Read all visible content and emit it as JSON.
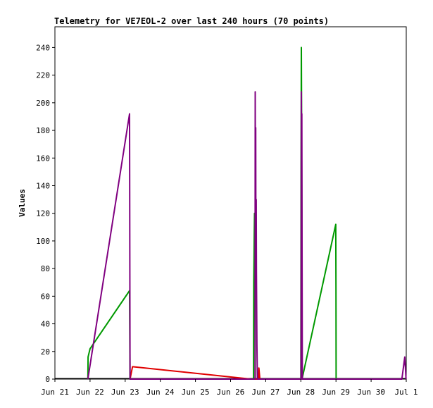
{
  "chart_data": {
    "type": "line",
    "title": "Telemetry for VE7EOL-2 over last 240 hours (70 points)",
    "xlabel": "",
    "ylabel": "Values",
    "x_range": [
      "2024-06-21T00:00",
      "2024-07-01T00:00"
    ],
    "ylim": [
      0,
      255
    ],
    "y_ticks": [
      0,
      20,
      40,
      60,
      80,
      100,
      120,
      140,
      160,
      180,
      200,
      220,
      240
    ],
    "x_ticks": [
      {
        "label": "Jun 21",
        "x": "2024-06-21T00:00"
      },
      {
        "label": "Jun 22",
        "x": "2024-06-22T00:00"
      },
      {
        "label": "Jun 23",
        "x": "2024-06-23T00:00"
      },
      {
        "label": "Jun 24",
        "x": "2024-06-24T00:00"
      },
      {
        "label": "Jun 25",
        "x": "2024-06-25T00:00"
      },
      {
        "label": "Jun 26",
        "x": "2024-06-26T00:00"
      },
      {
        "label": "Jun 27",
        "x": "2024-06-27T00:00"
      },
      {
        "label": "Jun 28",
        "x": "2024-06-28T00:00"
      },
      {
        "label": "Jun 29",
        "x": "2024-06-29T00:00"
      },
      {
        "label": "Jun 30",
        "x": "2024-06-30T00:00"
      },
      {
        "label": "Jul 1",
        "x": "2024-07-01T00:00"
      }
    ],
    "grid": false,
    "legend": "none",
    "series": [
      {
        "color": "#009900",
        "points": [
          [
            "2024-06-21T22:30",
            0
          ],
          [
            "2024-06-21T22:40",
            16
          ],
          [
            "2024-06-22T00:00",
            22
          ],
          [
            "2024-06-23T03:00",
            64
          ],
          [
            "2024-06-23T03:20",
            0
          ],
          [
            "2024-06-26T15:40",
            0
          ],
          [
            "2024-06-26T15:50",
            70
          ],
          [
            "2024-06-26T16:00",
            88
          ],
          [
            "2024-06-26T16:10",
            104
          ],
          [
            "2024-06-26T16:20",
            120
          ],
          [
            "2024-06-26T16:30",
            95
          ],
          [
            "2024-06-26T16:40",
            70
          ],
          [
            "2024-06-26T16:50",
            0
          ],
          [
            "2024-06-28T00:00",
            0
          ],
          [
            "2024-06-28T00:10",
            152
          ],
          [
            "2024-06-28T00:20",
            240
          ],
          [
            "2024-06-28T00:30",
            200
          ],
          [
            "2024-06-28T00:40",
            120
          ],
          [
            "2024-06-28T00:50",
            0
          ],
          [
            "2024-06-28T23:50",
            112
          ],
          [
            "2024-06-29T00:00",
            64
          ],
          [
            "2024-06-29T00:05",
            0
          ]
        ]
      },
      {
        "color": "#e00000",
        "points": [
          [
            "2024-06-23T03:20",
            0
          ],
          [
            "2024-06-23T05:00",
            9
          ],
          [
            "2024-06-26T14:00",
            0
          ],
          [
            "2024-06-26T19:00",
            0
          ],
          [
            "2024-06-26T19:20",
            8
          ],
          [
            "2024-06-26T20:00",
            0
          ]
        ]
      },
      {
        "color": "#800080",
        "points": [
          [
            "2024-06-21T22:30",
            0
          ],
          [
            "2024-06-23T03:00",
            192
          ],
          [
            "2024-06-23T03:20",
            0
          ],
          [
            "2024-06-26T16:40",
            0
          ],
          [
            "2024-06-26T16:50",
            208
          ],
          [
            "2024-06-26T17:00",
            120
          ],
          [
            "2024-06-26T17:10",
            182
          ],
          [
            "2024-06-26T17:20",
            80
          ],
          [
            "2024-06-26T17:30",
            130
          ],
          [
            "2024-06-26T17:40",
            78
          ],
          [
            "2024-06-26T18:00",
            25
          ],
          [
            "2024-06-26T18:20",
            0
          ],
          [
            "2024-06-28T00:10",
            0
          ],
          [
            "2024-06-28T00:20",
            208
          ],
          [
            "2024-06-28T00:30",
            150
          ],
          [
            "2024-06-28T00:40",
            192
          ],
          [
            "2024-06-28T00:50",
            97
          ],
          [
            "2024-06-28T01:00",
            0
          ],
          [
            "2024-06-30T21:00",
            0
          ],
          [
            "2024-06-30T23:00",
            16
          ],
          [
            "2024-06-30T23:50",
            0
          ]
        ]
      }
    ]
  }
}
